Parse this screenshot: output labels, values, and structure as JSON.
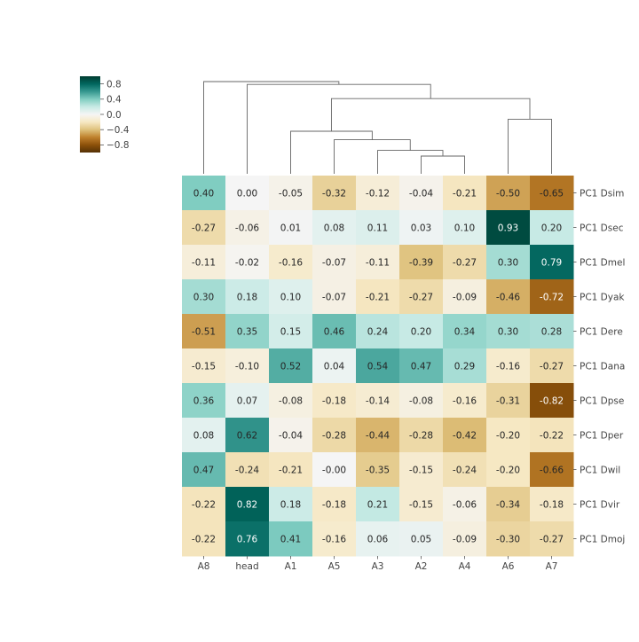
{
  "chart_data": {
    "type": "heatmap",
    "title": "",
    "columns": [
      "A8",
      "head",
      "A1",
      "A5",
      "A3",
      "A2",
      "A4",
      "A6",
      "A7"
    ],
    "rows": [
      "PC1 Dsim",
      "PC1 Dsec",
      "PC1 Dmel",
      "PC1 Dyak",
      "PC1 Dere",
      "PC1 Dana",
      "PC1 Dpse",
      "PC1 Dper",
      "PC1 Dwil",
      "PC1 Dvir",
      "PC1 Dmoj"
    ],
    "values": [
      [
        0.4,
        0.0,
        -0.05,
        -0.32,
        -0.12,
        -0.04,
        -0.21,
        -0.5,
        -0.65
      ],
      [
        -0.27,
        -0.06,
        0.01,
        0.08,
        0.11,
        0.03,
        0.1,
        0.93,
        0.2
      ],
      [
        -0.11,
        -0.02,
        -0.16,
        -0.07,
        -0.11,
        -0.39,
        -0.27,
        0.3,
        0.79
      ],
      [
        0.3,
        0.18,
        0.1,
        -0.07,
        -0.21,
        -0.27,
        -0.09,
        -0.46,
        -0.72
      ],
      [
        -0.51,
        0.35,
        0.15,
        0.46,
        0.24,
        0.2,
        0.34,
        0.3,
        0.28
      ],
      [
        -0.15,
        -0.1,
        0.52,
        0.04,
        0.54,
        0.47,
        0.29,
        -0.16,
        -0.27
      ],
      [
        0.36,
        0.07,
        -0.08,
        -0.18,
        -0.14,
        -0.08,
        -0.16,
        -0.31,
        -0.82
      ],
      [
        0.08,
        0.62,
        -0.04,
        -0.28,
        -0.44,
        -0.28,
        -0.42,
        -0.2,
        -0.22
      ],
      [
        0.47,
        -0.24,
        -0.21,
        -0.0,
        -0.35,
        -0.15,
        -0.24,
        -0.2,
        -0.66
      ],
      [
        -0.22,
        0.82,
        0.18,
        -0.18,
        0.21,
        -0.15,
        -0.06,
        -0.34,
        -0.18
      ],
      [
        -0.22,
        0.76,
        0.41,
        -0.16,
        0.06,
        0.05,
        -0.09,
        -0.3,
        -0.27
      ]
    ],
    "value_labels": [
      [
        "0.40",
        "0.00",
        "-0.05",
        "-0.32",
        "-0.12",
        "-0.04",
        "-0.21",
        "-0.50",
        "-0.65"
      ],
      [
        "-0.27",
        "-0.06",
        "0.01",
        "0.08",
        "0.11",
        "0.03",
        "0.10",
        "0.93",
        "0.20"
      ],
      [
        "-0.11",
        "-0.02",
        "-0.16",
        "-0.07",
        "-0.11",
        "-0.39",
        "-0.27",
        "0.30",
        "0.79"
      ],
      [
        "0.30",
        "0.18",
        "0.10",
        "-0.07",
        "-0.21",
        "-0.27",
        "-0.09",
        "-0.46",
        "-0.72"
      ],
      [
        "-0.51",
        "0.35",
        "0.15",
        "0.46",
        "0.24",
        "0.20",
        "0.34",
        "0.30",
        "0.28"
      ],
      [
        "-0.15",
        "-0.10",
        "0.52",
        "0.04",
        "0.54",
        "0.47",
        "0.29",
        "-0.16",
        "-0.27"
      ],
      [
        "0.36",
        "0.07",
        "-0.08",
        "-0.18",
        "-0.14",
        "-0.08",
        "-0.16",
        "-0.31",
        "-0.82"
      ],
      [
        "0.08",
        "0.62",
        "-0.04",
        "-0.28",
        "-0.44",
        "-0.28",
        "-0.42",
        "-0.20",
        "-0.22"
      ],
      [
        "0.47",
        "-0.24",
        "-0.21",
        "-0.00",
        "-0.35",
        "-0.15",
        "-0.24",
        "-0.20",
        "-0.66"
      ],
      [
        "-0.22",
        "0.82",
        "0.18",
        "-0.18",
        "0.21",
        "-0.15",
        "-0.06",
        "-0.34",
        "-0.18"
      ],
      [
        "-0.22",
        "0.76",
        "0.41",
        "-0.16",
        "0.06",
        "0.05",
        "-0.09",
        "-0.30",
        "-0.27"
      ]
    ],
    "colormap": "BrBG",
    "vmin": -1.0,
    "vmax": 1.0,
    "colorbar_ticks": [
      0.8,
      0.4,
      0.0,
      -0.4,
      -0.8
    ],
    "colorbar_tick_labels": [
      "0.8",
      "0.4",
      "0.0",
      "−0.4",
      "−0.8"
    ],
    "column_dendrogram": [
      {
        "join": [
          "A2",
          "A4"
        ],
        "height": 0.25
      },
      {
        "join": [
          "A3",
          [
            "A2",
            "A4"
          ]
        ],
        "height": 0.33
      },
      {
        "join": [
          "A5",
          [
            "A3",
            "A2",
            "A4"
          ]
        ],
        "height": 0.48
      },
      {
        "join": [
          "A1",
          [
            "A5",
            "A3",
            "A2",
            "A4"
          ]
        ],
        "height": 0.6
      },
      {
        "join": [
          "A6",
          "A7"
        ],
        "height": 0.77
      },
      {
        "join": [
          [
            "A1",
            "A5",
            "A3",
            "A2",
            "A4"
          ],
          [
            "A6",
            "A7"
          ]
        ],
        "height": 1.06
      },
      {
        "join": [
          "head",
          [
            "A1",
            "A5",
            "A3",
            "A2",
            "A4",
            "A6",
            "A7"
          ]
        ],
        "height": 1.26
      },
      {
        "join": [
          "A8",
          [
            "head",
            "A1",
            "A5",
            "A3",
            "A2",
            "A4",
            "A6",
            "A7"
          ]
        ],
        "height": 1.3
      }
    ],
    "grid": false
  }
}
